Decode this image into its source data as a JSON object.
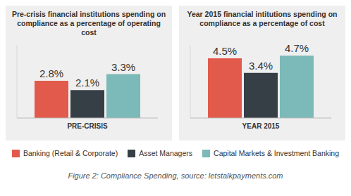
{
  "chart_data": [
    {
      "type": "bar",
      "title": "Pre-crisis financial institutions spending on compliance as a percentage of operating cost",
      "categories": [
        "PRE-CRISIS"
      ],
      "series": [
        {
          "name": "Banking (Retail & Corporate)",
          "color": "#e25a4b",
          "values": [
            2.8
          ],
          "value_labels": [
            "2.8%"
          ]
        },
        {
          "name": "Asset Managers",
          "color": "#363e46",
          "values": [
            2.1
          ],
          "value_labels": [
            "2.1%"
          ]
        },
        {
          "name": "Capital Markets & Investment Banking",
          "color": "#7cb9b9",
          "values": [
            3.3
          ],
          "value_labels": [
            "3.3%"
          ]
        }
      ],
      "ylim": [
        0,
        5.5
      ],
      "data_labels": true,
      "tick_labels": "x",
      "legend": "bottom"
    },
    {
      "type": "bar",
      "title": "Year 2015 financial intitutions spending on compliance as a percentage of cost",
      "categories": [
        "YEAR 2015"
      ],
      "series": [
        {
          "name": "Banking (Retail & Corporate)",
          "color": "#e25a4b",
          "values": [
            4.5
          ],
          "value_labels": [
            "4.5%"
          ]
        },
        {
          "name": "Asset Managers",
          "color": "#363e46",
          "values": [
            3.4
          ],
          "value_labels": [
            "3.4%"
          ]
        },
        {
          "name": "Capital Markets & Investment Banking",
          "color": "#7cb9b9",
          "values": [
            4.7
          ],
          "value_labels": [
            "4.7%"
          ]
        }
      ],
      "ylim": [
        0,
        5.5
      ],
      "data_labels": true,
      "tick_labels": "x"
    }
  ],
  "caption": "Figure 2: Compliance Spending, source: letstalkpayments.com"
}
